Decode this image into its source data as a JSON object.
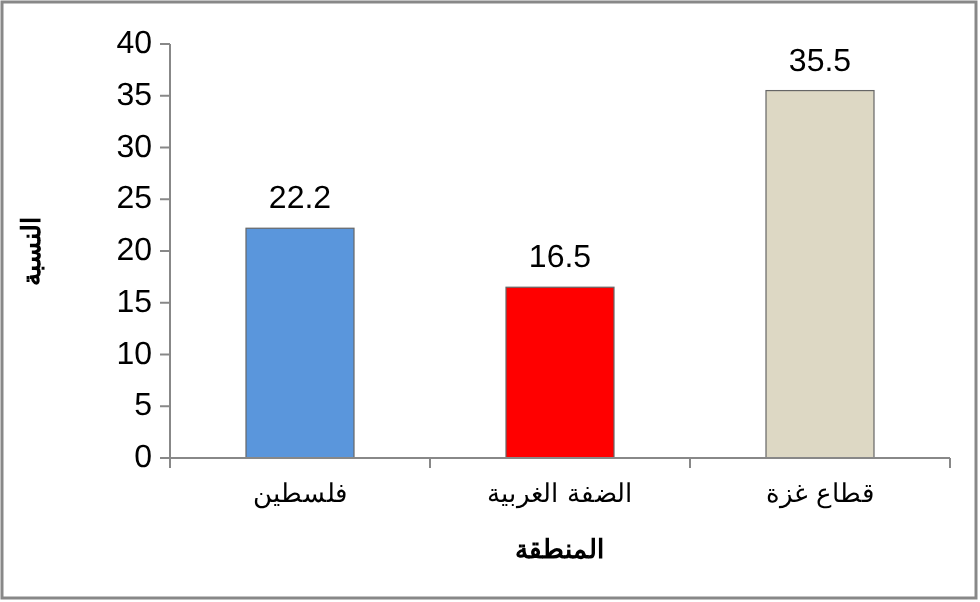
{
  "chart_data": {
    "type": "bar",
    "categories": [
      "فلسطين",
      "الضفة الغربية",
      "قطاع غزة"
    ],
    "values": [
      22.2,
      16.5,
      35.5
    ],
    "colors": [
      "#5a96dc",
      "#ff0000",
      "#ddd8c4"
    ],
    "xlabel": "المنطقة",
    "ylabel": "النسبة",
    "ylim": [
      0,
      40
    ],
    "yticks": [
      0,
      5,
      10,
      15,
      20,
      25,
      30,
      35,
      40
    ],
    "data_labels": true,
    "grid": false
  }
}
